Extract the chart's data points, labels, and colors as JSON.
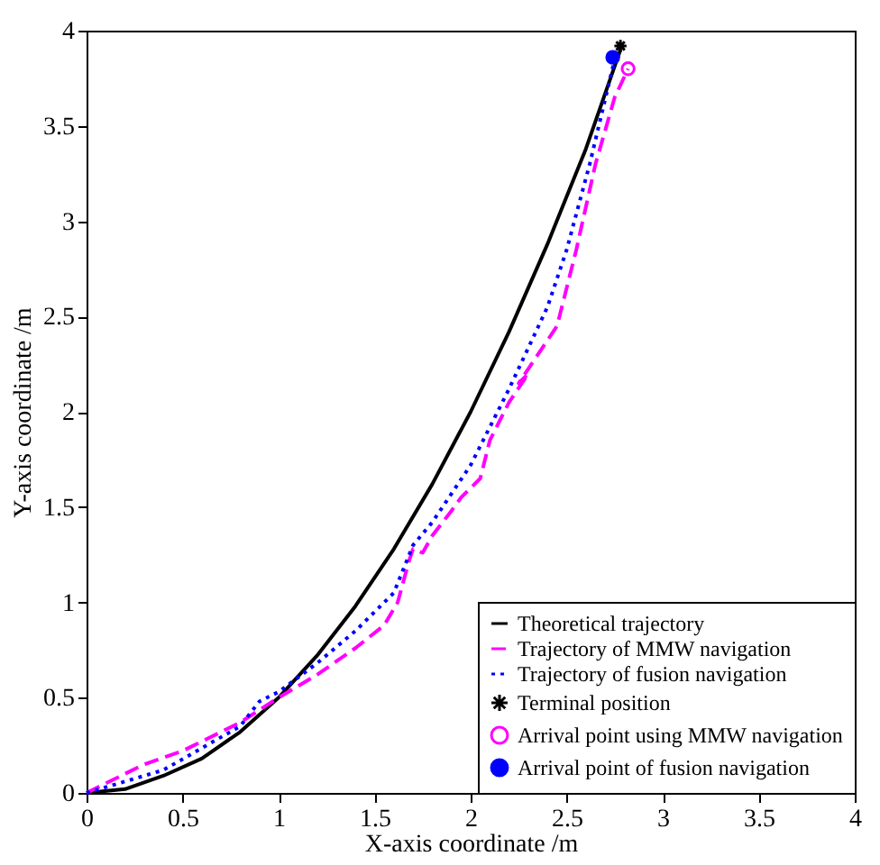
{
  "chart_data": {
    "type": "line",
    "xlabel": "X-axis coordinate /m",
    "ylabel": "Y-axis coordinate /m",
    "xlim": [
      0,
      4
    ],
    "ylim": [
      0,
      4
    ],
    "xticks": [
      0,
      0.5,
      1,
      1.5,
      2,
      2.5,
      3,
      3.5,
      4
    ],
    "yticks": [
      0,
      0.5,
      1,
      1.5,
      2,
      2.5,
      3,
      3.5,
      4
    ],
    "grid": false,
    "legend": "bottom right",
    "series": [
      {
        "name": "Theoretical trajectory",
        "color": "#000000",
        "line_style": "solid",
        "marker": "none",
        "x": [
          0,
          0.2,
          0.4,
          0.6,
          0.8,
          1.0,
          1.2,
          1.4,
          1.6,
          1.8,
          2.0,
          2.2,
          2.4,
          2.6,
          2.78
        ],
        "values": [
          0,
          0.02,
          0.09,
          0.18,
          0.32,
          0.5,
          0.72,
          0.98,
          1.28,
          1.62,
          2.0,
          2.42,
          2.88,
          3.38,
          3.9
        ]
      },
      {
        "name": "Trajectory of MMW navigation",
        "color": "#ff00ff",
        "line_style": "dashed",
        "marker": "none",
        "x": [
          0,
          0.3,
          0.5,
          0.8,
          1.0,
          1.2,
          1.4,
          1.55,
          1.62,
          1.68,
          1.7,
          1.75,
          1.8,
          1.9,
          1.95,
          2.05,
          2.1,
          2.2,
          2.3,
          2.25,
          2.45,
          2.55,
          2.65,
          2.75,
          2.82
        ],
        "values": [
          0,
          0.15,
          0.22,
          0.37,
          0.5,
          0.62,
          0.76,
          0.88,
          1.0,
          1.22,
          1.28,
          1.26,
          1.35,
          1.48,
          1.55,
          1.65,
          1.85,
          2.05,
          2.2,
          2.15,
          2.45,
          2.85,
          3.3,
          3.65,
          3.8
        ]
      },
      {
        "name": "Trajectory of fusion navigation",
        "color": "#0000ff",
        "line_style": "dotted",
        "marker": "none",
        "x": [
          0,
          0.4,
          0.8,
          0.9,
          1.0,
          1.2,
          1.4,
          1.6,
          1.7,
          1.8,
          2.0,
          2.2,
          2.4,
          2.5,
          2.62,
          2.75
        ],
        "values": [
          0,
          0.12,
          0.35,
          0.48,
          0.53,
          0.68,
          0.85,
          1.05,
          1.3,
          1.42,
          1.72,
          2.12,
          2.55,
          2.85,
          3.3,
          3.85
        ]
      },
      {
        "name": "Terminal position",
        "type": "scatter",
        "color": "#000000",
        "marker": "cross",
        "x": [
          2.78
        ],
        "values": [
          3.92
        ]
      },
      {
        "name": "Arrival point using MMW navigation",
        "type": "scatter",
        "color": "#ff00ff",
        "marker": "circle",
        "x": [
          2.82
        ],
        "values": [
          3.8
        ]
      },
      {
        "name": "Arrival point of fusion navigation",
        "type": "scatter",
        "color": "#0000ff",
        "marker": "circle",
        "x": [
          2.74
        ],
        "values": [
          3.86
        ]
      }
    ]
  }
}
